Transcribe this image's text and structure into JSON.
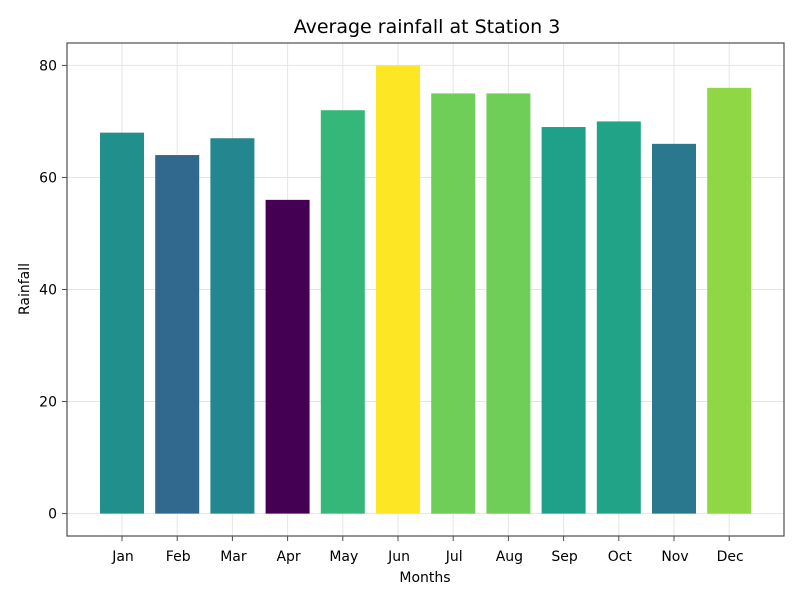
{
  "chart_data": {
    "type": "bar",
    "title": "Average rainfall at Station 3",
    "xlabel": "Months",
    "ylabel": "Rainfall",
    "categories": [
      "Jan",
      "Feb",
      "Mar",
      "Apr",
      "May",
      "Jun",
      "Jul",
      "Aug",
      "Sep",
      "Oct",
      "Nov",
      "Dec"
    ],
    "values": [
      68,
      64,
      67,
      56,
      72,
      80,
      75,
      75,
      69,
      70,
      66,
      76
    ],
    "colors": [
      "#21908d",
      "#31688e",
      "#24868e",
      "#440154",
      "#35b779",
      "#fde725",
      "#6ece58",
      "#6ece58",
      "#1fa088",
      "#20a386",
      "#2a788e",
      "#8fd744"
    ],
    "ylim": [
      -4,
      84
    ],
    "yticks": [
      0,
      20,
      40,
      60,
      80
    ],
    "grid": true,
    "legend": "none"
  }
}
